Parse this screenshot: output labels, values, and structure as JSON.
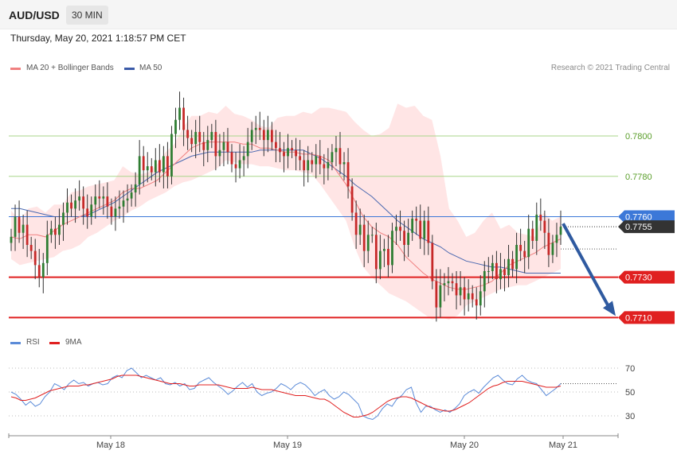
{
  "header": {
    "symbol": "AUD/USD",
    "timeframe": "30 MIN",
    "datetime": "Thursday, May 20, 2021 1:18:57 PM CET"
  },
  "legend": {
    "ma20_label": "MA 20 + Bollinger Bands",
    "ma50_label": "MA 50",
    "copyright": "Research © 2021 Trading Central"
  },
  "rsi_legend": {
    "rsi_label": "RSI",
    "ma9_label": "9MA"
  },
  "colors": {
    "up": "#2e7d32",
    "down": "#c62828",
    "band": "#ffe0e0",
    "ma20": "#f08080",
    "ma50": "#4a68b0",
    "resistance": "#a8d68a",
    "resistance_text": "#5a9e2a",
    "pivot": "#3c78d8",
    "support": "#e02020",
    "arrow": "#2f5aa0",
    "rsi": "#5b8bd8",
    "rsi_ma": "#e02020",
    "current": "#333333"
  },
  "chart_data": {
    "type": "candlestick",
    "title": "AUD/USD",
    "timeframe": "30 MIN",
    "ylim": [
      0.7705,
      0.7828
    ],
    "x_ticks": [
      "May 18",
      "May 19",
      "May 20",
      "May 21"
    ],
    "levels": [
      {
        "value": 0.78,
        "label": "0.7800",
        "kind": "resistance"
      },
      {
        "value": 0.778,
        "label": "0.7780",
        "kind": "resistance"
      },
      {
        "value": 0.776,
        "label": "0.7760",
        "kind": "pivot"
      },
      {
        "value": 0.773,
        "label": "0.7730",
        "kind": "support"
      },
      {
        "value": 0.771,
        "label": "0.7710",
        "kind": "support"
      }
    ],
    "current_price": {
      "value": 0.7755,
      "label": "0.7755"
    },
    "forecast_arrow": {
      "from": 0.7755,
      "to": 0.771
    },
    "closes": [
      0.775,
      0.776,
      0.7752,
      0.7756,
      0.7746,
      0.7743,
      0.7736,
      0.773,
      0.7737,
      0.7751,
      0.7754,
      0.7751,
      0.7756,
      0.7762,
      0.7767,
      0.7764,
      0.7768,
      0.777,
      0.7764,
      0.776,
      0.7766,
      0.777,
      0.7769,
      0.777,
      0.7765,
      0.776,
      0.7764,
      0.7765,
      0.7768,
      0.7769,
      0.7772,
      0.7776,
      0.779,
      0.7783,
      0.7785,
      0.7782,
      0.7788,
      0.7782,
      0.779,
      0.778,
      0.7801,
      0.7808,
      0.7814,
      0.7803,
      0.7799,
      0.7796,
      0.7802,
      0.7797,
      0.7793,
      0.7798,
      0.7802,
      0.779,
      0.7793,
      0.7797,
      0.7792,
      0.7786,
      0.7784,
      0.7788,
      0.779,
      0.7797,
      0.7803,
      0.7804,
      0.7803,
      0.7798,
      0.7803,
      0.7797,
      0.7794,
      0.7792,
      0.779,
      0.7794,
      0.7793,
      0.779,
      0.7788,
      0.7783,
      0.7788,
      0.7786,
      0.779,
      0.7786,
      0.7784,
      0.7787,
      0.7792,
      0.7794,
      0.7786,
      0.7787,
      0.7775,
      0.7762,
      0.7751,
      0.7756,
      0.7743,
      0.7751,
      0.7751,
      0.7734,
      0.7743,
      0.7744,
      0.7736,
      0.7753,
      0.7755,
      0.7753,
      0.7746,
      0.7752,
      0.7759,
      0.7758,
      0.7749,
      0.7758,
      0.7747,
      0.7728,
      0.7715,
      0.7726,
      0.7727,
      0.7728,
      0.7727,
      0.7721,
      0.7725,
      0.7719,
      0.7722,
      0.7719,
      0.7716,
      0.7723,
      0.7733,
      0.7733,
      0.7737,
      0.7729,
      0.7734,
      0.7731,
      0.7739,
      0.7734,
      0.7746,
      0.7743,
      0.774,
      0.7754,
      0.7748,
      0.7761,
      0.7758,
      0.7752,
      0.7741,
      0.7747,
      0.7751,
      0.7755
    ],
    "bollinger": {
      "upper": [
        0.7763,
        0.7758,
        0.7764,
        0.7765,
        0.7762,
        0.7766,
        0.7766,
        0.7772,
        0.7773,
        0.7775,
        0.7776,
        0.7777,
        0.7778,
        0.7785,
        0.7782,
        0.7781,
        0.7782,
        0.7786,
        0.7792,
        0.7796,
        0.7804,
        0.781,
        0.781,
        0.7812,
        0.7811,
        0.7815,
        0.7811,
        0.781,
        0.7808,
        0.7805,
        0.7804,
        0.7809,
        0.781,
        0.781,
        0.7812,
        0.7811,
        0.7814,
        0.7814,
        0.7813,
        0.7812,
        0.7807,
        0.7803,
        0.78,
        0.7801,
        0.7804,
        0.7816,
        0.7814,
        0.7815,
        0.781,
        0.7808,
        0.779,
        0.7764,
        0.7758,
        0.775,
        0.7752,
        0.7758,
        0.7762,
        0.7754,
        0.7756,
        0.7752,
        0.7751,
        0.775,
        0.7762,
        0.7758,
        0.776
      ],
      "lower": [
        0.7739,
        0.7736,
        0.7737,
        0.7738,
        0.7739,
        0.774,
        0.7743,
        0.7744,
        0.7746,
        0.775,
        0.7752,
        0.7755,
        0.7758,
        0.776,
        0.7763,
        0.7765,
        0.7768,
        0.777,
        0.7772,
        0.7775,
        0.7777,
        0.7778,
        0.778,
        0.7782,
        0.7784,
        0.7788,
        0.7787,
        0.7786,
        0.7786,
        0.7785,
        0.7785,
        0.7784,
        0.7783,
        0.7783,
        0.7782,
        0.7781,
        0.7776,
        0.777,
        0.7764,
        0.7758,
        0.7745,
        0.7735,
        0.773,
        0.7726,
        0.7722,
        0.772,
        0.7718,
        0.7715,
        0.7712,
        0.7709,
        0.771,
        0.7709,
        0.7711,
        0.7716,
        0.7718,
        0.772,
        0.7722,
        0.7724,
        0.7725,
        0.7726,
        0.7726,
        0.7728,
        0.773,
        0.7732,
        0.7734
      ]
    },
    "ma20": [
      0.775,
      0.7749,
      0.7751,
      0.7751,
      0.775,
      0.7753,
      0.7756,
      0.7758,
      0.776,
      0.7762,
      0.7764,
      0.7766,
      0.7768,
      0.7772,
      0.7774,
      0.7774,
      0.7776,
      0.7778,
      0.7782,
      0.7786,
      0.779,
      0.7794,
      0.7796,
      0.7797,
      0.7797,
      0.7797,
      0.7797,
      0.7796,
      0.7796,
      0.7794,
      0.7794,
      0.7793,
      0.7792,
      0.7792,
      0.7791,
      0.7791,
      0.779,
      0.7788,
      0.7782,
      0.7776,
      0.7768,
      0.776,
      0.7755,
      0.7752,
      0.775,
      0.7746,
      0.774,
      0.7736,
      0.7732,
      0.7729,
      0.7727,
      0.7725,
      0.7724,
      0.7724,
      0.7725,
      0.7726,
      0.7728,
      0.7732,
      0.7736,
      0.7738,
      0.774,
      0.7742,
      0.7745,
      0.7747,
      0.7749
    ],
    "ma50": [
      0.7764,
      0.7764,
      0.7763,
      0.7762,
      0.7761,
      0.776,
      0.776,
      0.776,
      0.776,
      0.7761,
      0.7763,
      0.7765,
      0.7767,
      0.777,
      0.7773,
      0.7776,
      0.7779,
      0.7782,
      0.7784,
      0.7786,
      0.7788,
      0.779,
      0.7791,
      0.7792,
      0.7792,
      0.7792,
      0.7792,
      0.7792,
      0.7792,
      0.7793,
      0.7793,
      0.7793,
      0.7793,
      0.7793,
      0.7793,
      0.7791,
      0.7789,
      0.7786,
      0.7783,
      0.778,
      0.7776,
      0.7773,
      0.777,
      0.7766,
      0.7762,
      0.7758,
      0.7755,
      0.7752,
      0.7749,
      0.7747,
      0.7745,
      0.7742,
      0.774,
      0.7738,
      0.7737,
      0.7736,
      0.7735,
      0.7735,
      0.7734,
      0.7733,
      0.7732,
      0.7732,
      0.7732,
      0.7732,
      0.7732
    ],
    "rsi": {
      "ticks": [
        70,
        50,
        30
      ],
      "ylim": [
        20,
        80
      ],
      "rsi": [
        50,
        48,
        44,
        39,
        42,
        38,
        40,
        46,
        50,
        57,
        55,
        52,
        57,
        60,
        57,
        58,
        55,
        57,
        58,
        56,
        57,
        62,
        64,
        62,
        68,
        70,
        66,
        62,
        64,
        62,
        60,
        62,
        57,
        56,
        58,
        55,
        57,
        52,
        53,
        58,
        60,
        62,
        58,
        55,
        52,
        48,
        51,
        55,
        58,
        54,
        57,
        50,
        47,
        49,
        50,
        53,
        57,
        55,
        52,
        56,
        58,
        56,
        52,
        47,
        50,
        52,
        47,
        44,
        46,
        50,
        48,
        44,
        40,
        30,
        28,
        27,
        30,
        36,
        40,
        38,
        44,
        47,
        52,
        54,
        41,
        33,
        38,
        38,
        35,
        33,
        35,
        33,
        36,
        40,
        47,
        50,
        52,
        49,
        54,
        58,
        62,
        64,
        60,
        57,
        56,
        61,
        64,
        60,
        58,
        57,
        52,
        47,
        50,
        53,
        57
      ],
      "ma9": [
        46,
        45,
        43,
        43,
        44,
        45,
        47,
        49,
        51,
        52,
        53,
        54,
        55,
        55,
        55,
        56,
        56,
        57,
        58,
        59,
        60,
        61,
        63,
        64,
        64,
        64,
        64,
        63,
        62,
        61,
        60,
        59,
        58,
        57,
        57,
        57,
        56,
        55,
        55,
        56,
        56,
        56,
        56,
        56,
        55,
        54,
        53,
        53,
        53,
        53,
        54,
        53,
        52,
        52,
        52,
        51,
        50,
        49,
        48,
        47,
        47,
        47,
        46,
        45,
        44,
        44,
        42,
        39,
        36,
        33,
        31,
        29,
        29,
        30,
        31,
        33,
        36,
        39,
        42,
        44,
        45,
        46,
        46,
        45,
        43,
        41,
        39,
        37,
        36,
        35,
        34,
        34,
        35,
        37,
        39,
        41,
        44,
        47,
        50,
        53,
        55,
        56,
        58,
        59,
        59,
        59,
        59,
        58,
        57,
        56,
        55,
        54,
        54,
        54,
        55
      ]
    }
  }
}
